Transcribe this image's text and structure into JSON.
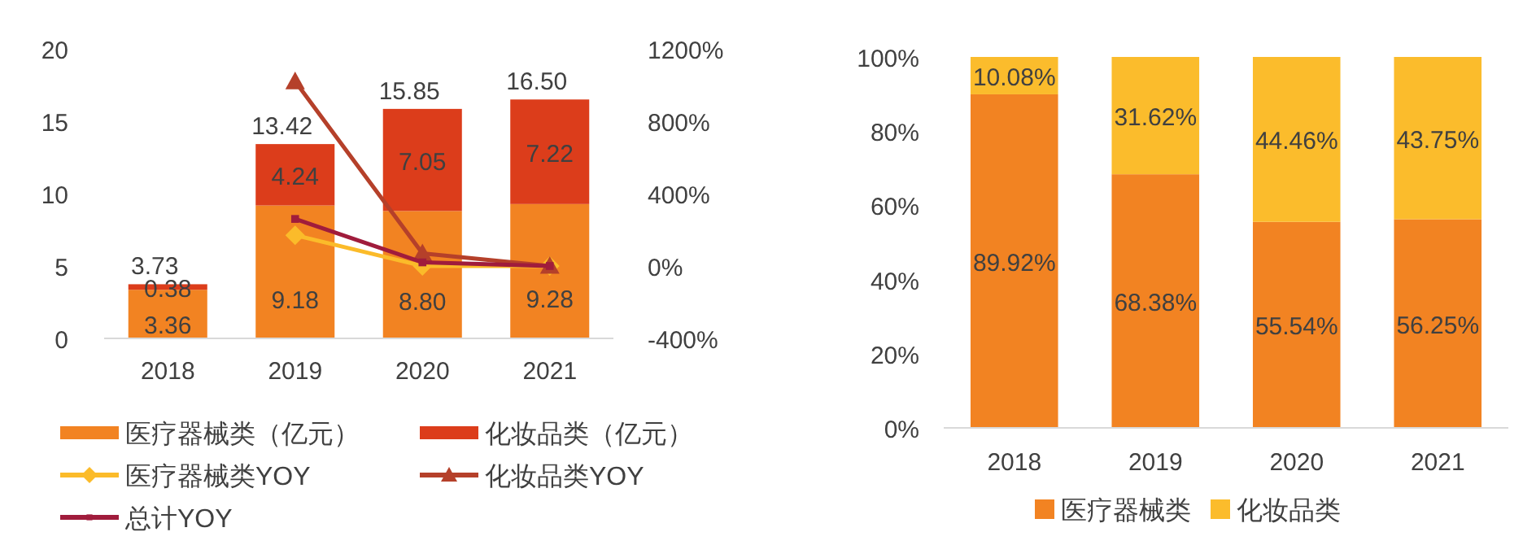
{
  "chart_data": [
    {
      "type": "bar",
      "stacked": true,
      "categories": [
        "2018",
        "2019",
        "2020",
        "2021"
      ],
      "series": [
        {
          "name": "医疗器械类（亿元）",
          "type": "bar",
          "color": "#f28322",
          "values": [
            3.36,
            9.18,
            8.8,
            9.28
          ],
          "value_labels": [
            "3.36",
            "9.18",
            "8.80",
            "9.28"
          ]
        },
        {
          "name": "化妆品类（亿元）",
          "type": "bar",
          "color": "#dc3d1b",
          "values": [
            0.38,
            4.24,
            7.05,
            7.22
          ],
          "value_labels": [
            "0.38",
            "4.24",
            "7.05",
            "7.22"
          ]
        },
        {
          "name": "医疗器械类YOY",
          "type": "line",
          "axis": "y2",
          "marker": "diamond",
          "color": "#fbbb2a",
          "values": [
            null,
            170,
            0,
            0
          ]
        },
        {
          "name": "化妆品类YOY",
          "type": "line",
          "axis": "y2",
          "marker": "triangle",
          "color": "#b5402a",
          "values": [
            null,
            1020,
            70,
            0
          ]
        },
        {
          "name": "总计YOY",
          "type": "line",
          "axis": "y2",
          "marker": "square",
          "color": "#a01c3c",
          "values": [
            null,
            260,
            20,
            0
          ]
        }
      ],
      "totals": [
        "3.73",
        "13.42",
        "15.85",
        "16.50"
      ],
      "ylim": [
        0,
        20
      ],
      "yticks": [
        0,
        5,
        10,
        15,
        20
      ],
      "y2lim": [
        -400,
        1200
      ],
      "y2ticks": [
        {
          "value": -400,
          "label": "-400%"
        },
        {
          "value": 0,
          "label": "0%"
        },
        {
          "value": 400,
          "label": "400%"
        },
        {
          "value": 800,
          "label": "800%"
        },
        {
          "value": 1200,
          "label": "1200%"
        }
      ],
      "legend": "bottom"
    },
    {
      "type": "bar",
      "stacked": true,
      "categories": [
        "2018",
        "2019",
        "2020",
        "2021"
      ],
      "series": [
        {
          "name": "医疗器械类",
          "color": "#f28322",
          "values": [
            89.92,
            68.38,
            55.54,
            56.25
          ],
          "value_labels": [
            "89.92%",
            "68.38%",
            "55.54%",
            "56.25%"
          ]
        },
        {
          "name": "化妆品类",
          "color": "#fbbc2c",
          "values": [
            10.08,
            31.62,
            44.46,
            43.75
          ],
          "value_labels": [
            "10.08%",
            "31.62%",
            "44.46%",
            "43.75%"
          ]
        }
      ],
      "ylim": [
        0,
        100
      ],
      "yticks": [
        {
          "value": 0,
          "label": "0%"
        },
        {
          "value": 20,
          "label": "20%"
        },
        {
          "value": 40,
          "label": "40%"
        },
        {
          "value": 60,
          "label": "60%"
        },
        {
          "value": 80,
          "label": "80%"
        },
        {
          "value": 100,
          "label": "100%"
        }
      ],
      "legend": "bottom"
    }
  ]
}
